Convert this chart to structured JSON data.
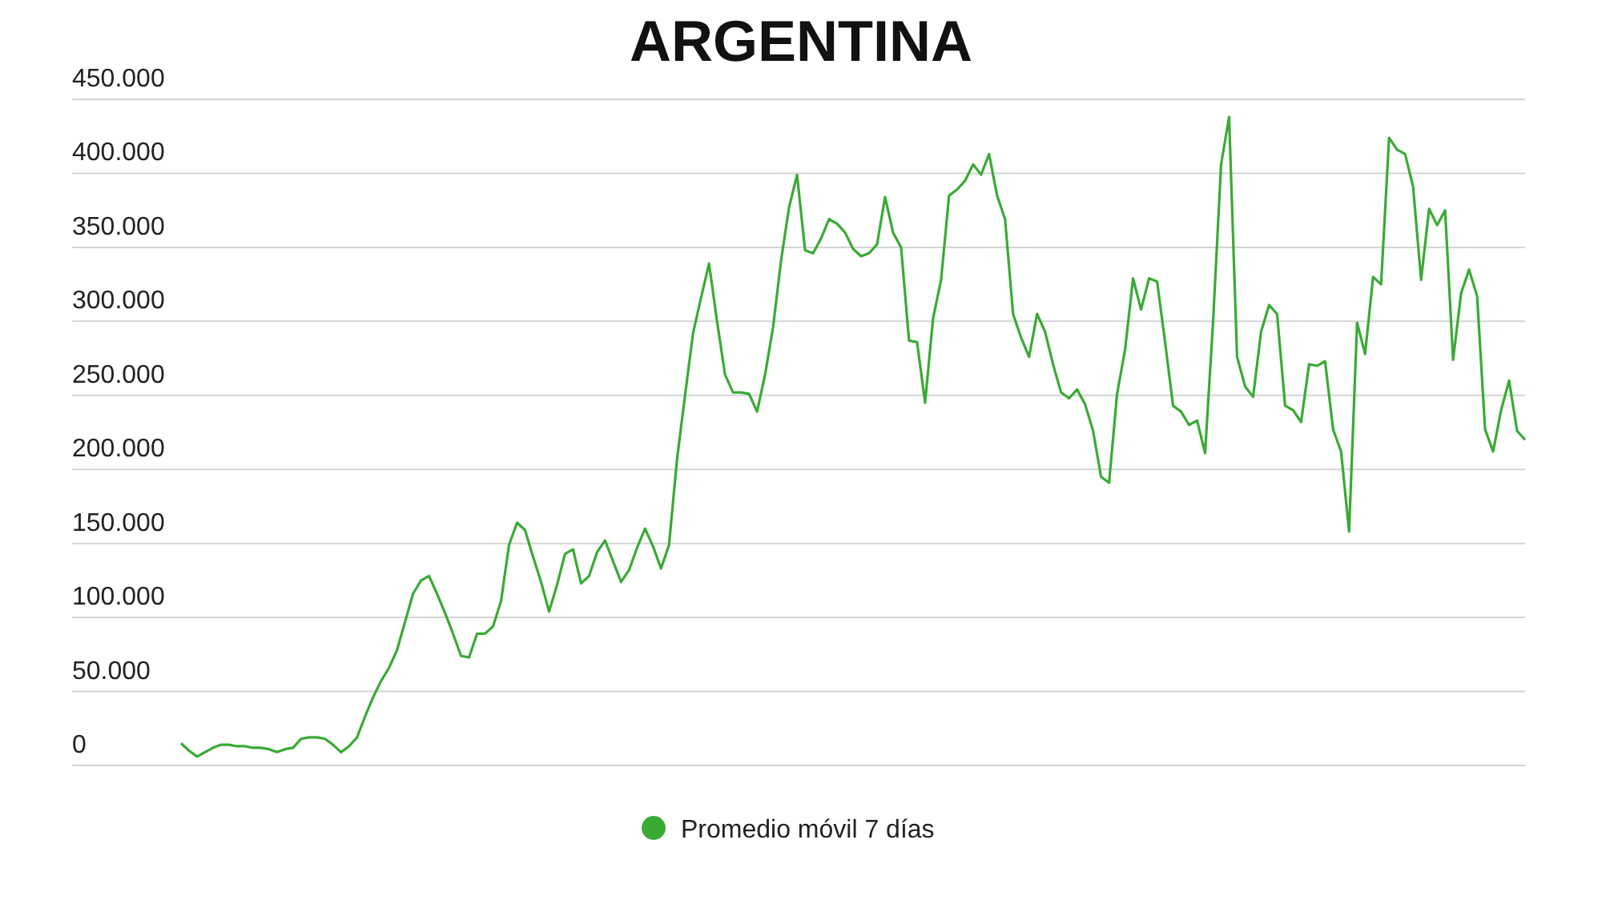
{
  "chart_data": {
    "type": "line",
    "title": "ARGENTINA",
    "categories": [
      null,
      null,
      null,
      null,
      null,
      null,
      null,
      null,
      null,
      null,
      null,
      null,
      null,
      null,
      null,
      null,
      null,
      null,
      null,
      null,
      null,
      null,
      null,
      null,
      null,
      null,
      null,
      null,
      null,
      null,
      null,
      null,
      null,
      null,
      null,
      null,
      null,
      null,
      null,
      null,
      null,
      null,
      null,
      null,
      null,
      null,
      null,
      null,
      null,
      null,
      null,
      null,
      null,
      null,
      null,
      null,
      null,
      null,
      null,
      null,
      null,
      null,
      null,
      null,
      null,
      null,
      null,
      null,
      null,
      null,
      null,
      null,
      null,
      null,
      null,
      null,
      null,
      null,
      null,
      null,
      null,
      null,
      null,
      null,
      null,
      null,
      null,
      null,
      null,
      null,
      null,
      null,
      null,
      null,
      null,
      null,
      null,
      null,
      null,
      null,
      null,
      null,
      null,
      null,
      null,
      null,
      null,
      null,
      null,
      null,
      null,
      null,
      null,
      null,
      null,
      null,
      null,
      null,
      null,
      null,
      null,
      null,
      null,
      null,
      null,
      null,
      null,
      null,
      null,
      null,
      null,
      null,
      null,
      null,
      null,
      null,
      null,
      null,
      null,
      null,
      null,
      null,
      null,
      null,
      null,
      null,
      null,
      null,
      null,
      null,
      null,
      null,
      null,
      null,
      null,
      null,
      null,
      null,
      null,
      null,
      null,
      null,
      null,
      null,
      null,
      null,
      null,
      null,
      null
    ],
    "series": [
      {
        "name": "Promedio móvil 7 días",
        "color": "#3aaa35",
        "values": [
          15000,
          10000,
          6000,
          9000,
          12000,
          14000,
          14000,
          13000,
          13000,
          12000,
          12000,
          11000,
          9000,
          11000,
          12000,
          18000,
          19000,
          19000,
          18000,
          14000,
          9000,
          13000,
          19000,
          33000,
          46000,
          57000,
          66000,
          78000,
          97000,
          116000,
          125000,
          128000,
          116000,
          103000,
          89000,
          74000,
          73000,
          89000,
          89000,
          94000,
          111000,
          149000,
          164000,
          159000,
          141000,
          124000,
          104000,
          122000,
          143000,
          146000,
          123000,
          128000,
          144000,
          152000,
          138000,
          124000,
          132000,
          147000,
          160000,
          148000,
          133000,
          149000,
          207000,
          250000,
          292000,
          316000,
          339000,
          300000,
          264000,
          252000,
          252000,
          251000,
          239000,
          264000,
          296000,
          341000,
          377000,
          399000,
          348000,
          346000,
          356000,
          369000,
          366000,
          360000,
          349000,
          344000,
          346000,
          352000,
          384000,
          360000,
          350000,
          287000,
          286000,
          245000,
          302000,
          328000,
          385000,
          389000,
          395000,
          406000,
          399000,
          413000,
          385000,
          369000,
          305000,
          289000,
          276000,
          305000,
          293000,
          271000,
          252000,
          248000,
          254000,
          244000,
          226000,
          195000,
          191000,
          251000,
          281000,
          329000,
          308000,
          329000,
          327000,
          286000,
          243000,
          239000,
          230000,
          233000,
          211000,
          300000,
          406000,
          438000,
          276000,
          256000,
          249000,
          293000,
          311000,
          305000,
          243000,
          240000,
          232000,
          271000,
          270000,
          273000,
          227000,
          212000,
          158000,
          299000,
          278000,
          330000,
          325000,
          424000,
          416000,
          413000,
          391000,
          328000,
          376000,
          365000,
          375000,
          274000,
          319000,
          335000,
          317000,
          227000,
          212000,
          240000,
          260000,
          226000,
          220000
        ]
      }
    ],
    "ylim": [
      0,
      450000
    ],
    "yticks": [
      0,
      {
        "value": 50000,
        "label": "50.000"
      },
      {
        "value": 100000,
        "label": "100.000"
      },
      {
        "value": 150000,
        "label": "150.000"
      },
      {
        "value": 200000,
        "label": "200.000"
      },
      {
        "value": 250000,
        "label": "250.000"
      },
      {
        "value": 300000,
        "label": "300.000"
      },
      {
        "value": 350000,
        "label": "350.000"
      },
      {
        "value": 400000,
        "label": "400.000"
      },
      {
        "value": 450000,
        "label": "450.000"
      }
    ],
    "grid": "y",
    "tick_labels": "y",
    "legend": "bottom"
  }
}
